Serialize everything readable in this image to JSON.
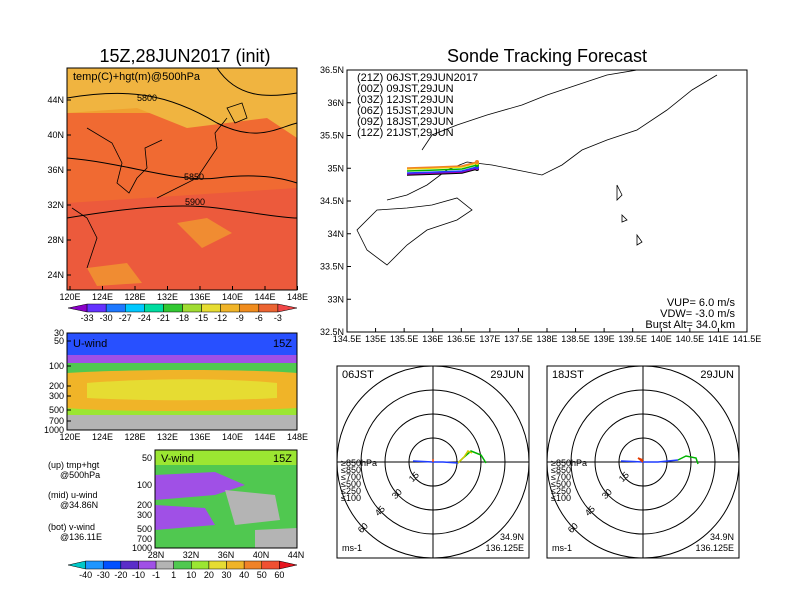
{
  "left": {
    "title": "15Z,28JUN2017 (init)",
    "map_label": "temp(C)+hgt(m)@500hPa",
    "lat_ticks": [
      "44N",
      "40N",
      "36N",
      "32N",
      "28N",
      "24N"
    ],
    "lon_ticks": [
      "120E",
      "124E",
      "128E",
      "132E",
      "136E",
      "140E",
      "144E",
      "148E"
    ],
    "contour_labels": [
      "5800",
      "5850",
      "5900"
    ],
    "temp_scale": [
      "-33",
      "-30",
      "-27",
      "-24",
      "-21",
      "-18",
      "-15",
      "-12",
      "-9",
      "-6",
      "-3"
    ],
    "uwind_label": "U-wind",
    "uwind_time": "15Z",
    "uwind_p_ticks": [
      "30",
      "50",
      "100",
      "200",
      "300",
      "500",
      "700",
      "1000"
    ],
    "uwind_lon_ticks": [
      "120E",
      "124E",
      "128E",
      "132E",
      "136E",
      "140E",
      "144E",
      "148E"
    ],
    "vwind_label": "V-wind",
    "vwind_time": "15Z",
    "vwind_p_ticks": [
      "50",
      "100",
      "200",
      "300",
      "500",
      "700",
      "1000"
    ],
    "vwind_lat_ticks": [
      "28N",
      "32N",
      "36N",
      "40N",
      "44N"
    ],
    "wind_scale": [
      "-40",
      "-30",
      "-20",
      "-10",
      "-1",
      "1",
      "10",
      "20",
      "30",
      "40",
      "50",
      "60"
    ],
    "notes": [
      "(up) tmp+hgt",
      "@500hPa",
      "(mid) u-wind",
      "@34.86N",
      "(bot) v-wind",
      "@136.11E"
    ]
  },
  "right": {
    "title": "Sonde Tracking Forecast",
    "lat_ticks": [
      "36.5N",
      "36N",
      "35.5N",
      "35N",
      "34.5N",
      "34N",
      "33.5N",
      "33N",
      "32.5N"
    ],
    "lon_ticks": [
      "134.5E",
      "135E",
      "135.5E",
      "136E",
      "136.5E",
      "137E",
      "137.5E",
      "138E",
      "138.5E",
      "139E",
      "139.5E",
      "140E",
      "140.5E",
      "141E",
      "141.5E"
    ],
    "legend": [
      {
        "text": "(21Z)  06JST,29JUN2017",
        "color": "#000000"
      },
      {
        "text": "(00Z)  09JST,29JUN",
        "color": "#a000c0"
      },
      {
        "text": "(03Z)  12JST,29JUN",
        "color": "#1e3cff"
      },
      {
        "text": "(06Z)  15JST,29JUN",
        "color": "#00b400"
      },
      {
        "text": "(09Z)  18JST,29JUN",
        "color": "#f0d200"
      },
      {
        "text": "(12Z)  21JST,29JUN",
        "color": "#f08228"
      }
    ],
    "params": [
      "VUP=  6.0  m/s",
      "VDW= -3.0  m/s",
      "Burst Alt=  34.0  km"
    ],
    "polar_left": {
      "time": "06JST",
      "date": "29JUN",
      "coords": [
        "34.9N",
        "136.125E"
      ],
      "unit": "ms-1"
    },
    "polar_right": {
      "time": "18JST",
      "date": "29JUN",
      "coords": [
        "34.9N",
        "136.125E"
      ],
      "unit": "ms-1"
    },
    "polar_rings": [
      "15",
      "30",
      "45",
      "60"
    ],
    "polar_levels": [
      {
        "text": "≥850hPa",
        "color": "#e63c00"
      },
      {
        "text": "≤850",
        "color": "#f0a000"
      },
      {
        "text": "≤700",
        "color": "#d2c800"
      },
      {
        "text": "≤500",
        "color": "#00b400"
      },
      {
        "text": "≤250",
        "color": "#00b4c8"
      },
      {
        "text": "≤100",
        "color": "#1e3cff"
      }
    ]
  },
  "colors": {
    "temp": [
      "#8a00c8",
      "#6432ff",
      "#1e78ff",
      "#00c8ff",
      "#00dca0",
      "#32c832",
      "#a0dc32",
      "#e6dc32",
      "#f0b428",
      "#f08c1e",
      "#ec6432",
      "#f04646"
    ],
    "wind": [
      "#00c8c8",
      "#1e96ff",
      "#0050ff",
      "#5a2dc8",
      "#a050e6",
      "#b4b4b4",
      "#50c850",
      "#9be632",
      "#e6dc32",
      "#f0b428",
      "#f08228",
      "#f05032",
      "#e6141e"
    ]
  }
}
